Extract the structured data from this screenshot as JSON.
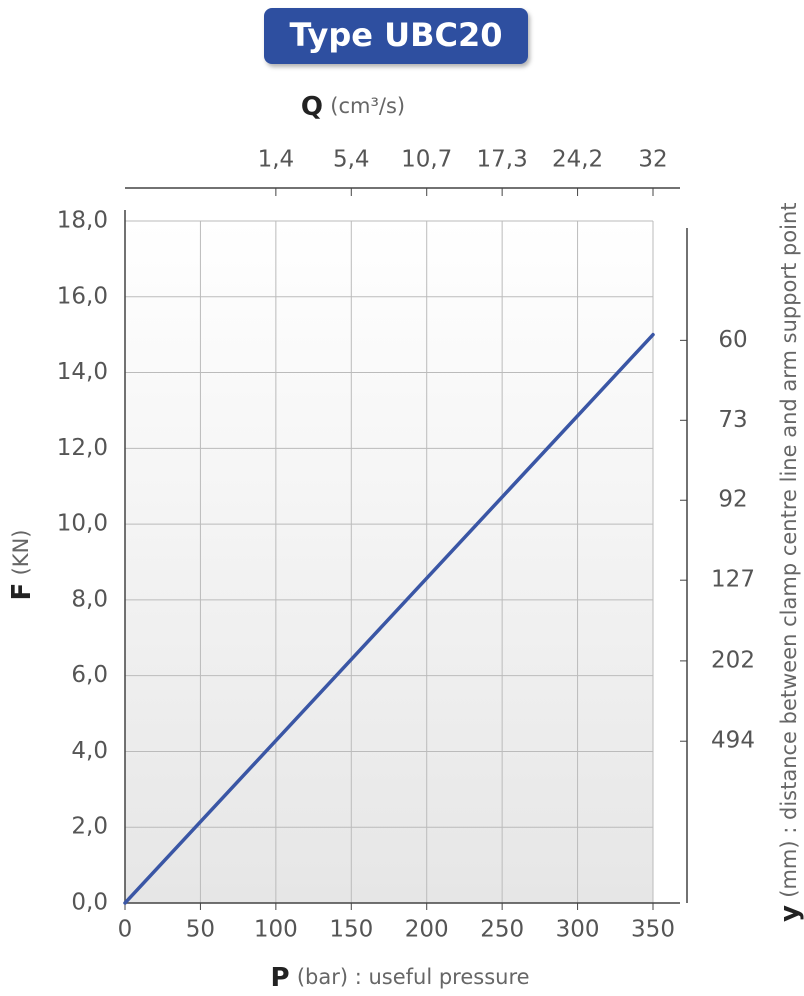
{
  "chart_data": {
    "type": "line",
    "title": "Type UBC20",
    "x": [
      0,
      350
    ],
    "series": [
      {
        "color": "#3a56a5",
        "values": [
          0,
          15.0
        ]
      }
    ],
    "xlim": [
      0,
      350
    ],
    "xticks": [
      0,
      50,
      100,
      150,
      200,
      250,
      300,
      350
    ],
    "ylim": [
      0,
      18
    ],
    "yticks": [
      {
        "value": 0,
        "label": "0,0"
      },
      {
        "value": 2,
        "label": "2,0"
      },
      {
        "value": 4,
        "label": "4,0"
      },
      {
        "value": 6,
        "label": "6,0"
      },
      {
        "value": 8,
        "label": "8,0"
      },
      {
        "value": 10,
        "label": "10,0"
      },
      {
        "value": 12,
        "label": "12,0"
      },
      {
        "value": 14,
        "label": "14,0"
      },
      {
        "value": 16,
        "label": "16,0"
      },
      {
        "value": 18,
        "label": "18,0"
      }
    ],
    "grid": true,
    "x_label": {
      "symbol": "P",
      "text": "(bar) : useful pressure"
    },
    "y_label": {
      "symbol": "F",
      "text": "(KN)"
    },
    "top_axis": {
      "symbol": "Q",
      "text": "(cm³/s)",
      "ticks": [
        {
          "value": 1.4,
          "label": "1,4"
        },
        {
          "value": 5.4,
          "label": "5,4"
        },
        {
          "value": 10.7,
          "label": "10,7"
        },
        {
          "value": 17.3,
          "label": "17,3"
        },
        {
          "value": 24.2,
          "label": "24,2"
        },
        {
          "value": 32,
          "label": "32"
        }
      ],
      "at_x": [
        100,
        150,
        200,
        250,
        300,
        350
      ]
    },
    "right_axis": {
      "symbol": "y",
      "text": "(mm) : distance between clamp centre line and arm support point",
      "ticks": [
        60,
        73,
        92,
        127,
        202,
        494
      ],
      "at_y": [
        14.85,
        12.74,
        10.63,
        8.52,
        6.39,
        4.27
      ]
    }
  }
}
